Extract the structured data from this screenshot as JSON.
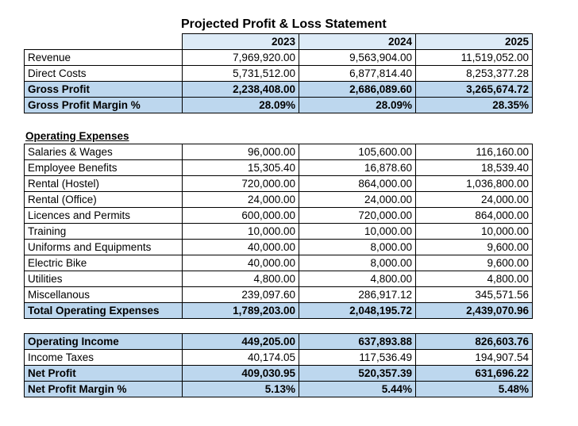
{
  "title": "Projected Profit & Loss Statement",
  "years": [
    "2023",
    "2024",
    "2025"
  ],
  "summary": [
    {
      "label": "Revenue",
      "values": [
        "7,969,920.00",
        "9,563,904.00",
        "11,519,052.00"
      ],
      "highlight": false
    },
    {
      "label": "Direct Costs",
      "values": [
        "5,731,512.00",
        "6,877,814.40",
        "8,253,377.28"
      ],
      "highlight": false
    },
    {
      "label": "Gross Profit",
      "values": [
        "2,238,408.00",
        "2,686,089.60",
        "3,265,674.72"
      ],
      "highlight": true
    },
    {
      "label": "Gross Profit Margin %",
      "values": [
        "28.09%",
        "28.09%",
        "28.35%"
      ],
      "highlight": true
    }
  ],
  "opex_heading": "Operating Expenses",
  "opex": [
    {
      "label": "Salaries & Wages",
      "values": [
        "96,000.00",
        "105,600.00",
        "116,160.00"
      ],
      "highlight": false
    },
    {
      "label": "Employee Benefits",
      "values": [
        "15,305.40",
        "16,878.60",
        "18,539.40"
      ],
      "highlight": false
    },
    {
      "label": "Rental (Hostel)",
      "values": [
        "720,000.00",
        "864,000.00",
        "1,036,800.00"
      ],
      "highlight": false
    },
    {
      "label": "Rental (Office)",
      "values": [
        "24,000.00",
        "24,000.00",
        "24,000.00"
      ],
      "highlight": false
    },
    {
      "label": "Licences and Permits",
      "values": [
        "600,000.00",
        "720,000.00",
        "864,000.00"
      ],
      "highlight": false
    },
    {
      "label": "Training",
      "values": [
        "10,000.00",
        "10,000.00",
        "10,000.00"
      ],
      "highlight": false
    },
    {
      "label": "Uniforms and Equipments",
      "values": [
        "40,000.00",
        "8,000.00",
        "9,600.00"
      ],
      "highlight": false
    },
    {
      "label": "Electric Bike",
      "values": [
        "40,000.00",
        "8,000.00",
        "9,600.00"
      ],
      "highlight": false
    },
    {
      "label": "Utilities",
      "values": [
        "4,800.00",
        "4,800.00",
        "4,800.00"
      ],
      "highlight": false
    },
    {
      "label": "Miscellanous",
      "values": [
        "239,097.60",
        "286,917.12",
        "345,571.56"
      ],
      "highlight": false
    },
    {
      "label": "Total Operating Expenses",
      "values": [
        "1,789,203.00",
        "2,048,195.72",
        "2,439,070.96"
      ],
      "highlight": true
    }
  ],
  "results": [
    {
      "label": "Operating Income",
      "values": [
        "449,205.00",
        "637,893.88",
        "826,603.76"
      ],
      "highlight": true
    },
    {
      "label": "Income Taxes",
      "values": [
        "40,174.05",
        "117,536.49",
        "194,907.54"
      ],
      "highlight": false
    },
    {
      "label": "Net Profit",
      "values": [
        "409,030.95",
        "520,357.39",
        "631,696.22"
      ],
      "highlight": true
    },
    {
      "label": "Net Profit Margin %",
      "values": [
        "5.13%",
        "5.44%",
        "5.48%"
      ],
      "highlight": true
    }
  ]
}
